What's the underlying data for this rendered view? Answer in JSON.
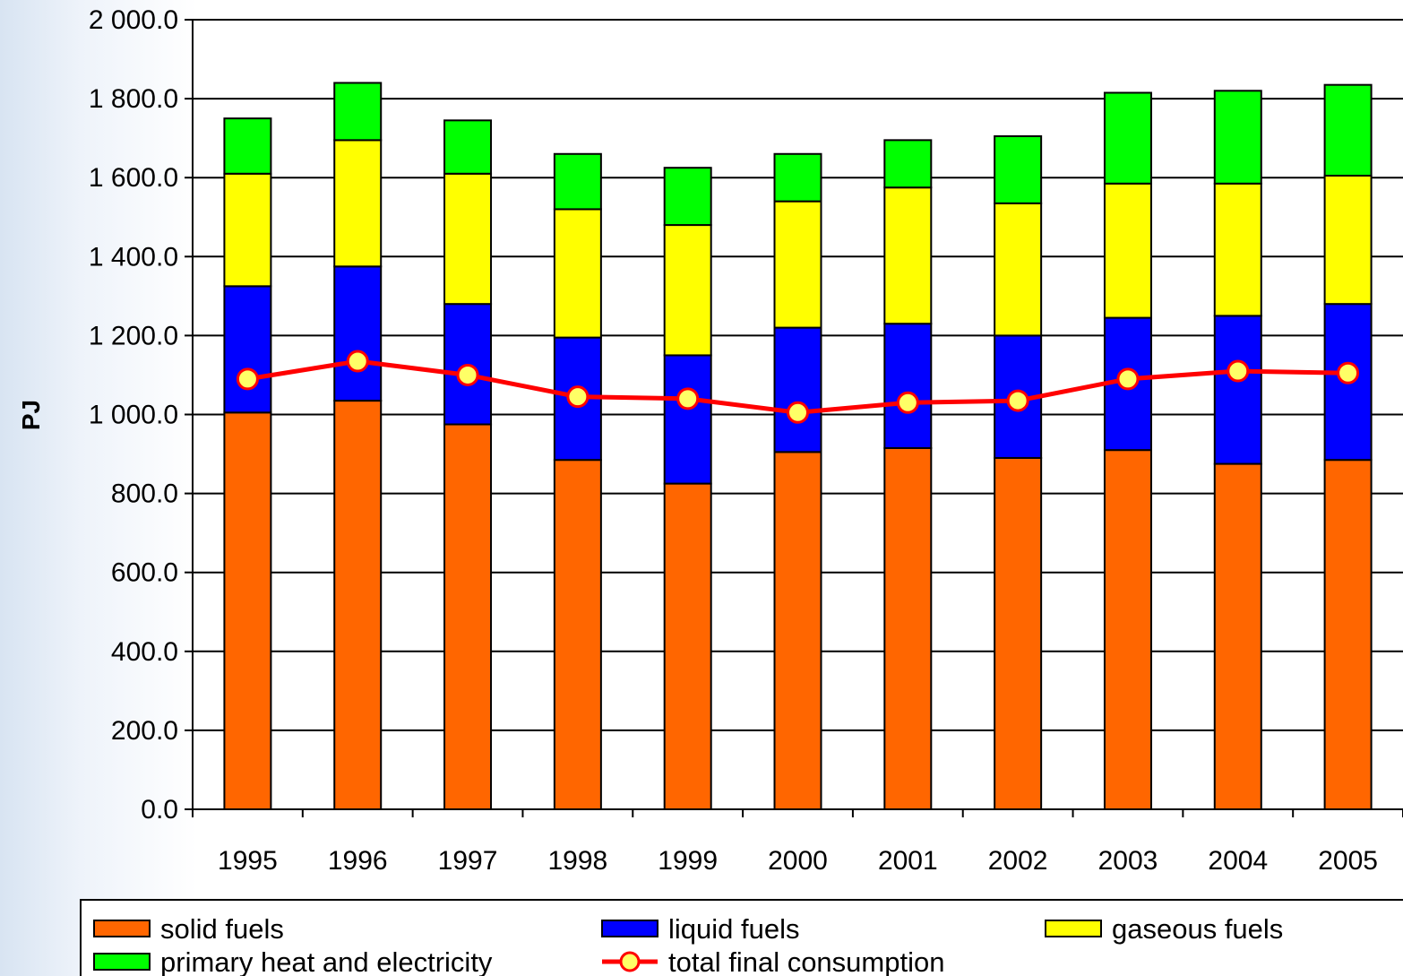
{
  "chart_data": {
    "type": "bar",
    "stacked": true,
    "categories": [
      "1995",
      "1996",
      "1997",
      "1998",
      "1999",
      "2000",
      "2001",
      "2002",
      "2003",
      "2004",
      "2005"
    ],
    "ylabel": "PJ",
    "xlabel": "",
    "ylim": [
      0,
      2000
    ],
    "yticks": [
      "0.0",
      "200.0",
      "400.0",
      "600.0",
      "800.0",
      "1 000.0",
      "1 200.0",
      "1 400.0",
      "1 600.0",
      "1 800.0",
      "2 000.0"
    ],
    "grid": true,
    "legend_position": "bottom",
    "series": [
      {
        "name": "solid fuels",
        "kind": "bar",
        "color": "#ff6600",
        "values": [
          1005,
          1035,
          975,
          885,
          825,
          905,
          915,
          890,
          910,
          875,
          885
        ]
      },
      {
        "name": "liquid fuels",
        "kind": "bar",
        "color": "#0000ff",
        "values": [
          320,
          340,
          305,
          310,
          325,
          315,
          315,
          310,
          335,
          375,
          395
        ]
      },
      {
        "name": "gaseous fuels",
        "kind": "bar",
        "color": "#ffff00",
        "values": [
          285,
          320,
          330,
          325,
          330,
          320,
          345,
          335,
          340,
          335,
          325
        ]
      },
      {
        "name": "primary heat and electricity",
        "kind": "bar",
        "color": "#00ff00",
        "values": [
          140,
          145,
          135,
          140,
          145,
          120,
          120,
          170,
          230,
          235,
          230
        ]
      },
      {
        "name": "total final consumption",
        "kind": "line",
        "color": "#ff0000",
        "marker_fill": "#ffff66",
        "values": [
          1090,
          1135,
          1100,
          1045,
          1040,
          1005,
          1030,
          1035,
          1090,
          1110,
          1105
        ]
      }
    ]
  }
}
